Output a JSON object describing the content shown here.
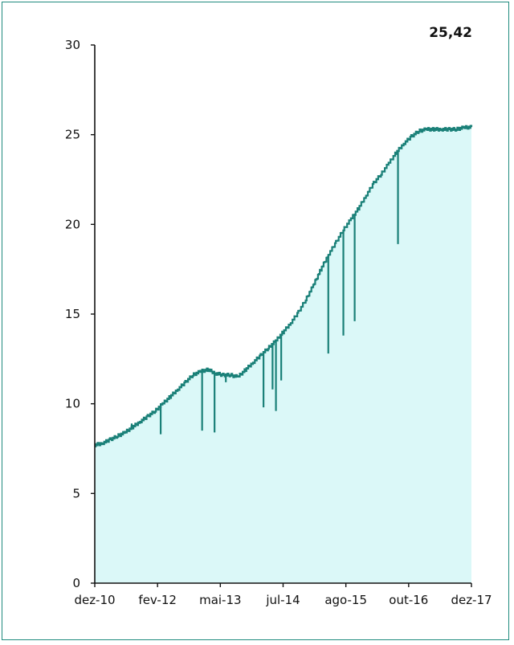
{
  "chart_data": {
    "type": "area",
    "title": "",
    "xlabel": "",
    "ylabel": "",
    "annotation": "25,42",
    "ylim": [
      0,
      30
    ],
    "y_ticks": [
      "0",
      "5",
      "10",
      "15",
      "20",
      "25",
      "30"
    ],
    "x_ticks": [
      "dez-10",
      "fev-12",
      "mai-13",
      "jul-14",
      "ago-15",
      "out-16",
      "dez-17"
    ],
    "grid": false,
    "legend": "none",
    "colors": {
      "line": "#1a8078",
      "fill": "#dbf8f8",
      "frame": "#1f8a7d"
    },
    "series": [
      {
        "x": [
          0.0,
          0.02,
          0.04,
          0.06,
          0.08,
          0.1,
          0.12,
          0.14,
          0.16,
          0.18,
          0.2,
          0.22,
          0.24,
          0.26,
          0.28,
          0.3,
          0.32,
          0.34,
          0.36,
          0.38,
          0.4,
          0.42,
          0.44,
          0.46,
          0.48,
          0.5,
          0.52,
          0.54,
          0.56,
          0.58,
          0.6,
          0.62,
          0.64,
          0.66,
          0.68,
          0.7,
          0.72,
          0.74,
          0.76,
          0.78,
          0.8,
          0.82,
          0.84,
          0.86,
          0.88,
          0.9,
          0.92,
          0.94,
          0.96,
          0.98,
          1.0
        ],
        "values": [
          7.7,
          7.8,
          8.0,
          8.2,
          8.4,
          8.7,
          9.0,
          9.3,
          9.6,
          10.0,
          10.4,
          10.8,
          11.2,
          11.6,
          11.8,
          11.9,
          11.7,
          11.6,
          11.6,
          11.5,
          11.9,
          12.3,
          12.7,
          13.1,
          13.5,
          14.0,
          14.5,
          15.1,
          15.8,
          16.6,
          17.5,
          18.3,
          19.0,
          19.7,
          20.3,
          20.9,
          21.6,
          22.3,
          22.8,
          23.4,
          24.0,
          24.5,
          24.9,
          25.2,
          25.3,
          25.3,
          25.3,
          25.3,
          25.3,
          25.4,
          25.42
        ]
      }
    ],
    "spikes": [
      {
        "x": 0.098,
        "to": 8.9
      },
      {
        "x": 0.175,
        "to": 8.3
      },
      {
        "x": 0.285,
        "to": 8.5
      },
      {
        "x": 0.318,
        "to": 8.4
      },
      {
        "x": 0.348,
        "to": 11.2
      },
      {
        "x": 0.448,
        "to": 9.8
      },
      {
        "x": 0.472,
        "to": 10.8
      },
      {
        "x": 0.481,
        "to": 9.6
      },
      {
        "x": 0.495,
        "to": 11.3
      },
      {
        "x": 0.62,
        "to": 12.8
      },
      {
        "x": 0.66,
        "to": 13.8
      },
      {
        "x": 0.69,
        "to": 14.6
      },
      {
        "x": 0.805,
        "to": 18.9
      }
    ]
  }
}
